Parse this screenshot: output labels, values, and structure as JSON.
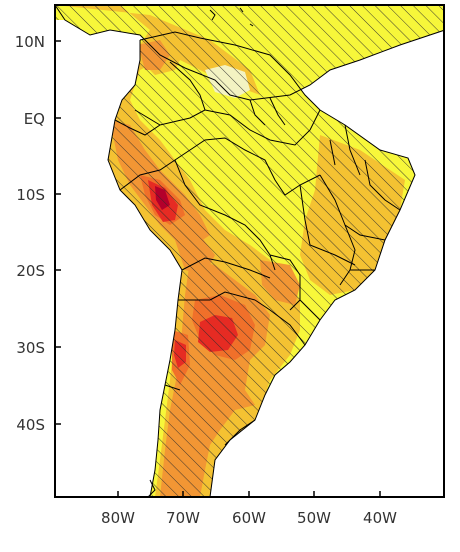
{
  "axes": {
    "y_ticks": [
      "10N",
      "EQ",
      "10S",
      "20S",
      "30S",
      "40S"
    ],
    "x_ticks": [
      "80W",
      "70W",
      "60W",
      "50W",
      "40W"
    ]
  },
  "map": {
    "region": "South America",
    "lon_range": [
      -90,
      -30
    ],
    "lat_range": [
      -49.6,
      14.4
    ],
    "fill_colors": {
      "light": "#f3f3c2",
      "yellow": "#f7f73a",
      "gold": "#f4c232",
      "orange": "#f29634",
      "dark_orange": "#f0702a",
      "red": "#e62b23",
      "dark_red": "#b3002b"
    },
    "hatching": "diagonal lines",
    "border_color": "#000000"
  }
}
